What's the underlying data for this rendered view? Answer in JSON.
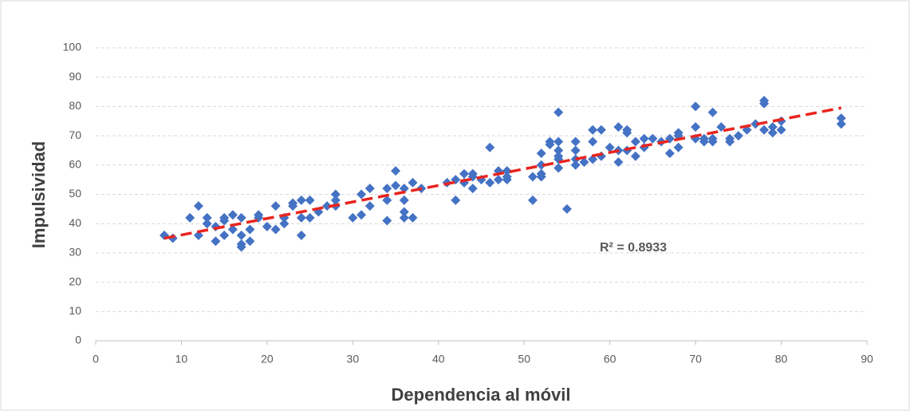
{
  "chart_data": {
    "type": "scatter",
    "x_label": "Dependencia al móvil",
    "y_label": "Impulsividad",
    "annotation": "R² = 0.8933",
    "x": [
      8,
      9,
      11,
      12,
      12,
      13,
      13,
      14,
      14,
      15,
      15,
      15,
      16,
      16,
      17,
      17,
      17,
      17,
      18,
      18,
      19,
      19,
      20,
      21,
      21,
      22,
      22,
      23,
      23,
      24,
      24,
      24,
      25,
      25,
      26,
      27,
      28,
      28,
      28,
      30,
      31,
      31,
      32,
      32,
      34,
      34,
      34,
      35,
      35,
      36,
      36,
      36,
      36,
      37,
      37,
      38,
      41,
      42,
      42,
      43,
      43,
      44,
      44,
      44,
      45,
      46,
      46,
      47,
      47,
      48,
      48,
      48,
      51,
      51,
      52,
      52,
      52,
      52,
      53,
      53,
      54,
      54,
      54,
      54,
      54,
      54,
      55,
      56,
      56,
      56,
      56,
      57,
      58,
      58,
      58,
      59,
      59,
      60,
      61,
      61,
      61,
      62,
      62,
      62,
      63,
      63,
      64,
      64,
      65,
      66,
      67,
      67,
      68,
      68,
      68,
      70,
      70,
      70,
      71,
      71,
      72,
      72,
      72,
      73,
      74,
      74,
      75,
      76,
      77,
      78,
      78,
      78,
      79,
      79,
      80,
      80,
      87,
      87
    ],
    "series": [
      {
        "color": "#4472c4",
        "values": [
          36,
          35,
          42,
          46,
          36,
          42,
          40,
          34,
          39,
          41,
          42,
          36,
          43,
          38,
          42,
          36,
          33,
          32,
          38,
          34,
          43,
          42,
          39,
          46,
          38,
          42,
          40,
          46,
          47,
          48,
          42,
          36,
          48,
          42,
          44,
          46,
          50,
          48,
          46,
          42,
          43,
          50,
          52,
          46,
          52,
          48,
          41,
          58,
          53,
          52,
          48,
          44,
          42,
          54,
          42,
          52,
          54,
          55,
          48,
          57,
          54,
          57,
          56,
          52,
          55,
          66,
          54,
          58,
          55,
          58,
          56,
          55,
          56,
          48,
          64,
          60,
          57,
          56,
          68,
          67,
          78,
          68,
          65,
          63,
          62,
          59,
          45,
          68,
          65,
          62,
          60,
          61,
          72,
          68,
          62,
          72,
          63,
          66,
          73,
          65,
          61,
          72,
          71,
          65,
          68,
          63,
          69,
          66,
          69,
          68,
          69,
          64,
          71,
          70,
          66,
          80,
          73,
          69,
          69,
          68,
          78,
          69,
          68,
          73,
          69,
          68,
          70,
          72,
          74,
          82,
          81,
          72,
          73,
          71,
          75,
          72,
          76,
          74
        ]
      }
    ],
    "trendline": {
      "x": [
        8,
        87
      ],
      "y": [
        35,
        79.5
      ],
      "color": "#e8251f"
    },
    "xlim": [
      0,
      90
    ],
    "xticks": [
      0,
      10,
      20,
      30,
      40,
      50,
      60,
      70,
      80,
      90
    ],
    "ylim": [
      0,
      100
    ],
    "yticks": [
      0,
      10,
      20,
      30,
      40,
      50,
      60,
      70,
      80,
      90,
      100
    ],
    "grid": true
  }
}
